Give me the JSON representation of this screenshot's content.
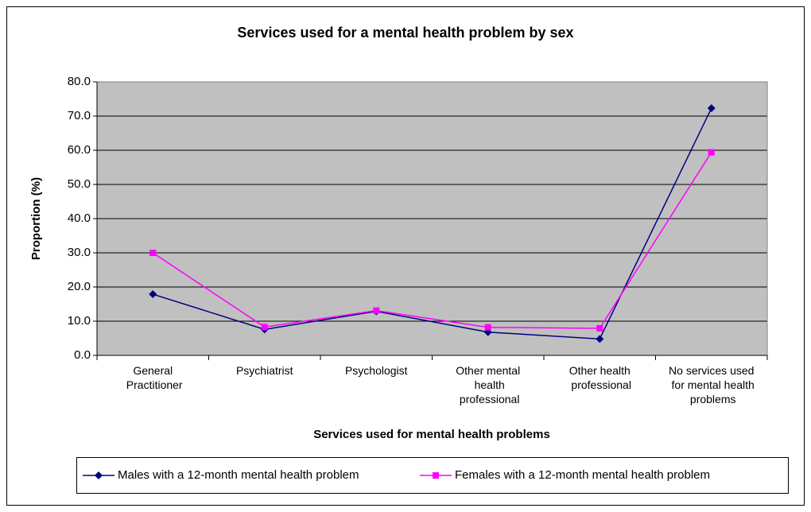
{
  "chart_data": {
    "type": "line",
    "title": "Services used for a mental health problem by sex",
    "x_label": "Services used for mental health problems",
    "y_label": "Proportion (%)",
    "categories": [
      "General Practitioner",
      "Psychiatrist",
      "Psychologist",
      "Other mental health professional",
      "Other health professional",
      "No services used for mental health problems"
    ],
    "series": [
      {
        "name": "Males with a 12-month mental health problem",
        "color": "#000080",
        "marker": "diamond",
        "values": [
          17.9,
          7.6,
          12.9,
          6.8,
          4.8,
          72.3
        ]
      },
      {
        "name": "Females with a 12-month mental health problem",
        "color": "#ff00ff",
        "marker": "square",
        "values": [
          30.0,
          8.3,
          13.1,
          8.2,
          7.9,
          59.4
        ]
      }
    ],
    "ylim": [
      0,
      80
    ],
    "yticks": [
      {
        "value": 0,
        "label": "0.0"
      },
      {
        "value": 10,
        "label": "10.0"
      },
      {
        "value": 20,
        "label": "20.0"
      },
      {
        "value": 30,
        "label": "30.0"
      },
      {
        "value": 40,
        "label": "40.0"
      },
      {
        "value": 50,
        "label": "50.0"
      },
      {
        "value": 60,
        "label": "60.0"
      },
      {
        "value": 70,
        "label": "70.0"
      },
      {
        "value": 80,
        "label": "80.0"
      }
    ],
    "grid": true,
    "plot_background": "#c0c0c0",
    "legend": "bottom"
  }
}
